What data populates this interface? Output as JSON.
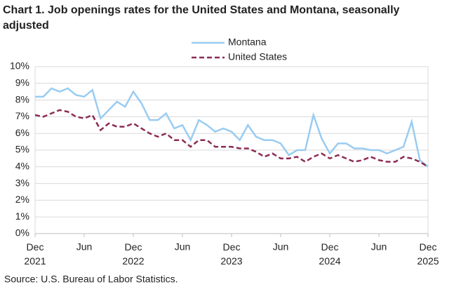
{
  "chart_data": {
    "type": "line",
    "title": "Chart 1. Job openings rates for the United States and Montana, seasonally adjusted",
    "source": "Source: U.S. Bureau of Labor Statistics.",
    "categories": [
      "Dec 2021",
      null,
      null,
      null,
      null,
      null,
      "Jun",
      null,
      null,
      null,
      null,
      null,
      "Dec 2022",
      null,
      null,
      null,
      null,
      null,
      "Jun",
      null,
      null,
      null,
      null,
      null,
      "Dec 2023",
      null,
      null,
      null,
      null,
      null,
      "Jun",
      null,
      null,
      null,
      null,
      null,
      "Dec 2024",
      null,
      null,
      null,
      null,
      null,
      "Jun",
      null,
      null,
      null,
      null,
      null,
      "Dec 2025"
    ],
    "series": [
      {
        "name": "Montana",
        "color": "#99ccf2",
        "dash": false,
        "values": [
          8.2,
          8.2,
          8.7,
          8.5,
          8.7,
          8.3,
          8.2,
          8.6,
          6.9,
          7.4,
          7.9,
          7.6,
          8.5,
          7.8,
          6.8,
          6.8,
          7.2,
          6.3,
          6.5,
          5.6,
          6.8,
          6.5,
          6.1,
          6.3,
          6.1,
          5.6,
          6.5,
          5.8,
          5.6,
          5.6,
          5.4,
          4.7,
          5.0,
          5.0,
          7.1,
          5.7,
          4.8,
          5.4,
          5.4,
          5.1,
          5.1,
          5.0,
          5.0,
          4.8,
          5.0,
          5.2,
          6.7,
          4.4,
          4.0
        ]
      },
      {
        "name": "United States",
        "color": "#8c2c54",
        "dash": true,
        "values": [
          7.1,
          7.0,
          7.2,
          7.4,
          7.3,
          7.0,
          6.9,
          7.1,
          6.2,
          6.6,
          6.4,
          6.4,
          6.6,
          6.3,
          6.0,
          5.8,
          6.0,
          5.6,
          5.6,
          5.2,
          5.6,
          5.6,
          5.2,
          5.2,
          5.2,
          5.1,
          5.1,
          4.9,
          4.6,
          4.8,
          4.5,
          4.5,
          4.6,
          4.3,
          4.6,
          4.8,
          4.5,
          4.7,
          4.5,
          4.3,
          4.4,
          4.6,
          4.4,
          4.3,
          4.3,
          4.6,
          4.5,
          4.3,
          4.0
        ]
      }
    ],
    "ylim": [
      0,
      10
    ],
    "yticks": [
      {
        "value": 0,
        "label": "0%"
      },
      {
        "value": 1,
        "label": "1%"
      },
      {
        "value": 2,
        "label": "2%"
      },
      {
        "value": 3,
        "label": "3%"
      },
      {
        "value": 4,
        "label": "4%"
      },
      {
        "value": 5,
        "label": "5%"
      },
      {
        "value": 6,
        "label": "6%"
      },
      {
        "value": 7,
        "label": "7%"
      },
      {
        "value": 8,
        "label": "8%"
      },
      {
        "value": 9,
        "label": "9%"
      },
      {
        "value": 10,
        "label": "10%"
      }
    ],
    "grid": true
  }
}
